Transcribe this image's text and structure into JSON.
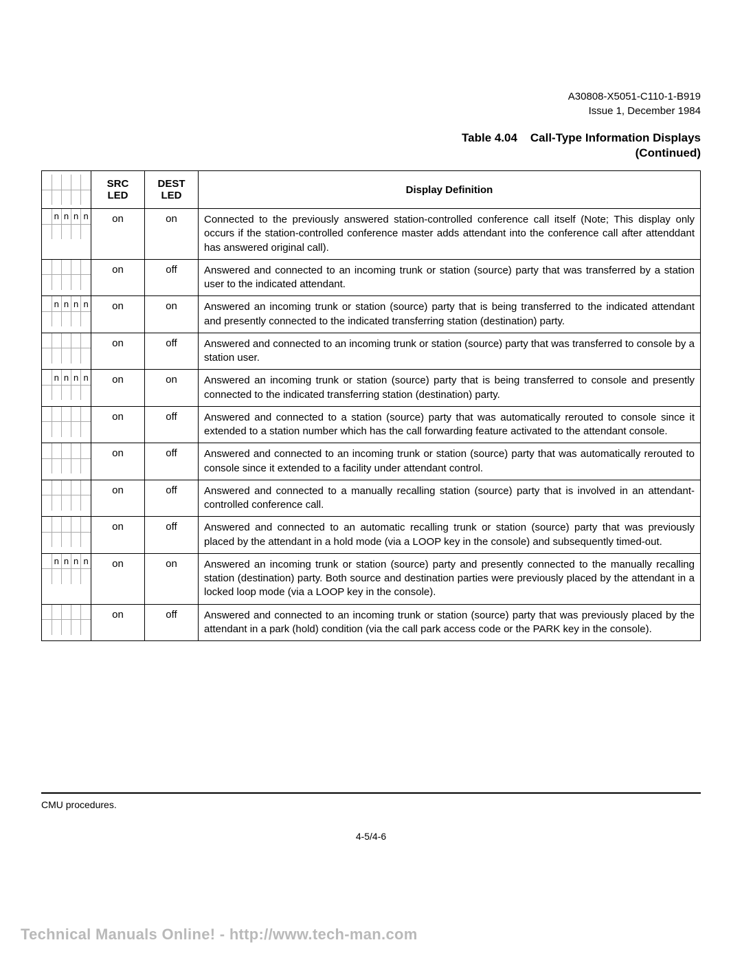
{
  "header": {
    "doc_id": "A30808-X5051-C110-1-B919",
    "issue": "Issue 1, December 1984"
  },
  "table_caption": {
    "number": "Table 4.04",
    "title": "Call-Type Information Displays",
    "continued": "(Continued)"
  },
  "columns": {
    "src": "SRC LED",
    "dest": "DEST LED",
    "def": "Display Definition"
  },
  "rows": [
    {
      "src": "on",
      "dest": "on",
      "grid_top": [
        "ı",
        "",
        "n",
        "n",
        "n",
        "n"
      ],
      "definition": "Connected to the previously answered station-controlled conference call itself (Note; This display only occurs if the station-controlled conference master adds attendant into the conference call after attenddant has answered original call)."
    },
    {
      "src": "on",
      "dest": "off",
      "grid_top": [
        "",
        "",
        "",
        "",
        "",
        ""
      ],
      "definition": "Answered and connected to an incoming trunk or station (source) party that was transferred by a station user to the indicated attendant."
    },
    {
      "src": "on",
      "dest": "on",
      "grid_top": [
        "ı",
        "",
        "n",
        "n",
        "n",
        "n"
      ],
      "definition": "Answered an incoming trunk or station (source) party that is being transferred to the indicated attendant and presently connected to the indicated transferring station (destination) party."
    },
    {
      "src": "on",
      "dest": "off",
      "grid_top": [
        "",
        "",
        "",
        "",
        "",
        ""
      ],
      "definition": "Answered and connected to an incoming trunk or station (source) party that was transferred to console by a station user."
    },
    {
      "src": "on",
      "dest": "on",
      "grid_top": [
        "ı",
        "",
        "n",
        "n",
        "n",
        "n"
      ],
      "definition": "Answered an incoming trunk or station (source) party that is being transferred to console and presently connected to the indicated transferring station (destination) party."
    },
    {
      "src": "on",
      "dest": "off",
      "grid_top": [
        "",
        "",
        "",
        "",
        "",
        ""
      ],
      "definition": "Answered and connected to a station (source) party that was automatically rerouted to console since it extended to a station number which has the call forwarding feature activated to the attendant console."
    },
    {
      "src": "on",
      "dest": "off",
      "grid_top": [
        "",
        "",
        "",
        "",
        "",
        ""
      ],
      "definition": "Answered and connected to an incoming trunk or station (source) party that was automatically rerouted to console since it extended to a facility under attendant control."
    },
    {
      "src": "on",
      "dest": "off",
      "grid_top": [
        "",
        "",
        "",
        "",
        "",
        ""
      ],
      "definition": "Answered and connected to a manually recalling station (source) party that is involved in an attendant-controlled conference call."
    },
    {
      "src": "on",
      "dest": "off",
      "grid_top": [
        "",
        "",
        "",
        "",
        "",
        ""
      ],
      "definition": "Answered and connected to an automatic recalling trunk or station (source) party that was previously placed by the attendant in a hold mode (via a LOOP key in the console) and subsequently timed-out."
    },
    {
      "src": "on",
      "dest": "on",
      "grid_top": [
        "ı",
        "",
        "n",
        "n",
        "n",
        "n"
      ],
      "definition": "Answered an incoming trunk or station (source) party and presently connected to the manually recalling station (destination) party. Both source and destination parties were previously placed by the attendant in a locked loop mode (via a LOOP key in the console)."
    },
    {
      "src": "on",
      "dest": "off",
      "grid_top": [
        "",
        "",
        "",
        "",
        "",
        ""
      ],
      "definition": "Answered and connected to an incoming trunk or station (source) party that was previously placed by the attendant in a park (hold) condition (via the call park access code or the PARK key in the console)."
    }
  ],
  "footer": {
    "note": "CMU procedures.",
    "page": "4-5/4-6"
  },
  "bottom_bar": "Technical Manuals Online! - http://www.tech-man.com"
}
